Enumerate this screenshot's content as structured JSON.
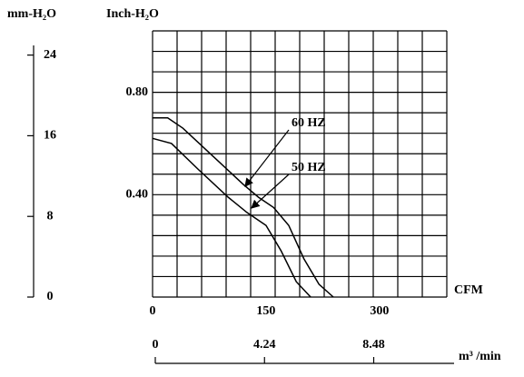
{
  "chart_data": {
    "type": "line",
    "y_label": "Inch-H₂O",
    "y2_label": "mm-H₂O",
    "x_label": "CFM",
    "x2_label": "m³ /min",
    "xlim": [
      0,
      389
    ],
    "xticks": [
      0,
      150,
      300
    ],
    "ylim": [
      0,
      1.04
    ],
    "yticks": [
      {
        "value": 0.4,
        "label": "0.40"
      },
      {
        "value": 0.8,
        "label": "0.80"
      }
    ],
    "y2lim": [
      0,
      26.4
    ],
    "y2ticks": [
      0,
      8,
      16,
      24
    ],
    "x2lim": [
      0,
      11.6
    ],
    "x2ticks": [
      0,
      4.24,
      8.48
    ],
    "series": [
      {
        "name": "60 HZ",
        "color": "#000000",
        "x": [
          0,
          20,
          40,
          80,
          120,
          140,
          160,
          180,
          200,
          220,
          239
        ],
        "values": [
          0.7,
          0.7,
          0.66,
          0.55,
          0.44,
          0.39,
          0.35,
          0.28,
          0.15,
          0.05,
          0
        ]
      },
      {
        "name": "50 HZ",
        "color": "#000000",
        "x": [
          0,
          25,
          60,
          100,
          125,
          150,
          170,
          190,
          209
        ],
        "values": [
          0.62,
          0.6,
          0.5,
          0.39,
          0.33,
          0.28,
          0.18,
          0.06,
          0
        ]
      }
    ]
  }
}
